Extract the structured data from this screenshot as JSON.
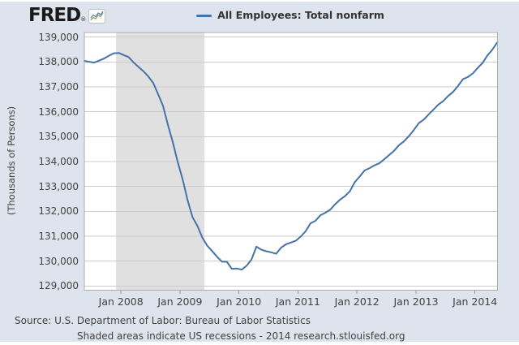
{
  "logo": {
    "text": "FRED",
    "registered_mark": "®"
  },
  "legend": {
    "series_label": "All Employees: Total nonfarm"
  },
  "y_axis": {
    "title": "(Thousands of Persons)",
    "ticks": [
      "139,000",
      "138,000",
      "137,000",
      "136,000",
      "135,000",
      "134,000",
      "133,000",
      "132,000",
      "131,000",
      "130,000",
      "129,000"
    ]
  },
  "x_axis": {
    "ticks": [
      "Jan 2008",
      "Jan 2009",
      "Jan 2010",
      "Jan 2011",
      "Jan 2012",
      "Jan 2013",
      "Jan 2014"
    ]
  },
  "footer": {
    "source_line": "Source: U.S. Department of Labor: Bureau of Labor Statistics",
    "note_line": "Shaded areas indicate US recessions - 2014 research.stlouisfed.org"
  },
  "colors": {
    "canvas_bg": "#dde4ee",
    "plot_bg": "#ffffff",
    "line": "#4572a7",
    "gridline": "#cccccc",
    "recession_band": "#e0e0e0",
    "plot_border": "#adadad",
    "tick": "#999999",
    "text": "#424242",
    "legend_text": "#333333",
    "logo_text": "#1a1a1a"
  },
  "chart_data": {
    "type": "line",
    "title": "All Employees: Total nonfarm",
    "ylabel": "(Thousands of Persons)",
    "units": "Thousands of Persons",
    "frequency": "monthly",
    "x_start": "2007-06",
    "x_end": "2014-06",
    "x_tick_labels": [
      "Jan 2008",
      "Jan 2009",
      "Jan 2010",
      "Jan 2011",
      "Jan 2012",
      "Jan 2013",
      "Jan 2014"
    ],
    "ylim": [
      128830,
      139186
    ],
    "gridlines": [
      129000,
      130000,
      131000,
      132000,
      133000,
      134000,
      135000,
      136000,
      137000,
      138000,
      139000
    ],
    "grid": true,
    "legend_position": "top",
    "recession_band": {
      "start": "2007-12",
      "end": "2009-06"
    },
    "series": [
      {
        "name": "All Employees: Total nonfarm",
        "values": [
          138043,
          138007,
          137977,
          138054,
          138138,
          138253,
          138350,
          138365,
          138279,
          138199,
          137985,
          137803,
          137631,
          137421,
          137162,
          136711,
          136237,
          135472,
          134774,
          133976,
          133275,
          132449,
          131765,
          131411,
          130944,
          130617,
          130401,
          130174,
          129976,
          129970,
          129687,
          129705,
          129655,
          129811,
          130062,
          130578,
          130456,
          130395,
          130353,
          130296,
          130537,
          130674,
          130745,
          130815,
          130983,
          131195,
          131517,
          131619,
          131836,
          131942,
          132064,
          132285,
          132466,
          132608,
          132804,
          133172,
          133398,
          133641,
          133737,
          133847,
          133930,
          134090,
          134262,
          134435,
          134660,
          134808,
          135022,
          135261,
          135541,
          135682,
          135885,
          136084,
          136285,
          136434,
          136636,
          136800,
          137037,
          137311,
          137395,
          137539,
          137761,
          137964,
          138268,
          138497,
          138790
        ]
      }
    ]
  }
}
